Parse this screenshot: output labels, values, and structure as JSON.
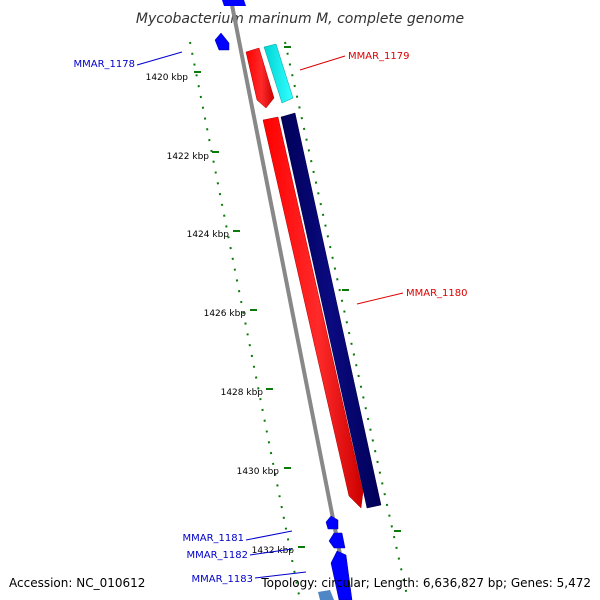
{
  "title": "Mycobacterium marinum M, complete genome",
  "footer": {
    "accession": "Accession: NC_010612",
    "topology": "Topology: circular; Length: 6,636,827 bp; Genes: 5,472"
  },
  "ticks": [
    "1420 kbp",
    "1422 kbp",
    "1424 kbp",
    "1426 kbp",
    "1428 kbp",
    "1430 kbp",
    "1432 kbp"
  ],
  "genes": [
    {
      "id": "MMAR_1178",
      "label": "MMAR_1178",
      "strand": "minus",
      "color": "#0000cc"
    },
    {
      "id": "MMAR_1179",
      "label": "MMAR_1179",
      "strand": "plus",
      "color": "#dd0000"
    },
    {
      "id": "MMAR_1180",
      "label": "MMAR_1180",
      "strand": "plus",
      "color": "#dd0000"
    },
    {
      "id": "MMAR_1181",
      "label": "MMAR_1181",
      "strand": "minus",
      "color": "#0000cc"
    },
    {
      "id": "MMAR_1182",
      "label": "MMAR_1182",
      "strand": "minus",
      "color": "#0000cc"
    },
    {
      "id": "MMAR_1183",
      "label": "MMAR_1183",
      "strand": "minus",
      "color": "#0000cc"
    }
  ],
  "colors": {
    "backbone": "#888888",
    "ruler": "#0a7a0a",
    "cds_plus": "#ff0000",
    "cds_minus": "#0000ff",
    "orf_plus": "#00e5e5",
    "orf_minus": "#000070",
    "label_plus": "#dd0000",
    "label_minus": "#0000cc"
  }
}
